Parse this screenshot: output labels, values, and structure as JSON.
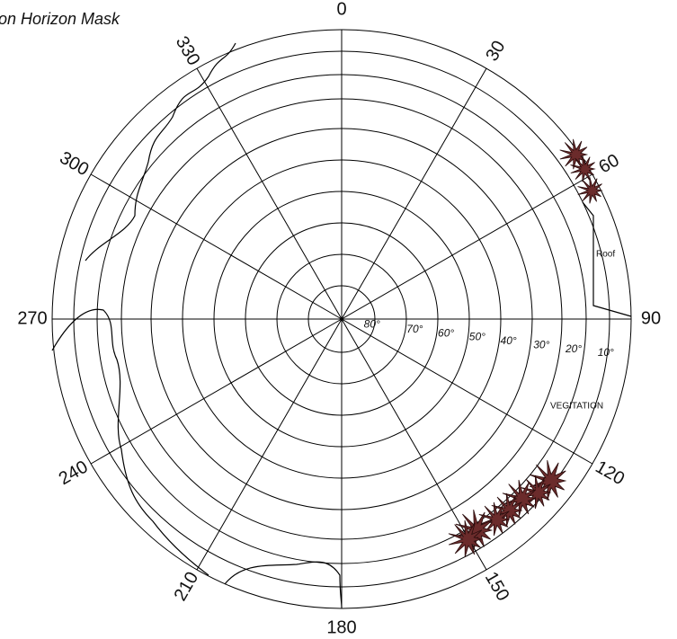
{
  "title": "on Horizon Mask",
  "azimuth_labels": [
    "0",
    "30",
    "60",
    "90",
    "120",
    "150",
    "180",
    "210",
    "240",
    "270",
    "300",
    "330"
  ],
  "elevation_labels": [
    "80°",
    "70°",
    "60°",
    "50°",
    "40°",
    "30°",
    "20°",
    "10°"
  ],
  "annotations": {
    "roof": "Roof",
    "vegetation": "VEGITATION"
  }
}
